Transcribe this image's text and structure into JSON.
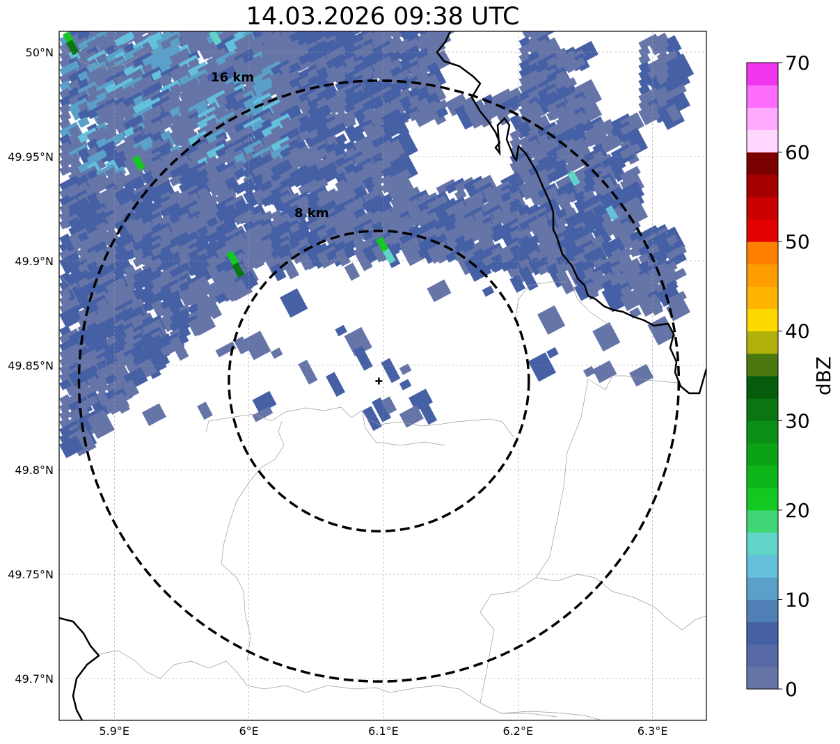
{
  "title": "14.03.2026 09:38 UTC",
  "map": {
    "lon_range": [
      5.859,
      6.34
    ],
    "lat_range": [
      49.68,
      50.01
    ],
    "lon_ticks": [
      {
        "value": 5.9,
        "label": "5.9°E"
      },
      {
        "value": 6.0,
        "label": "6°E"
      },
      {
        "value": 6.1,
        "label": "6.1°E"
      },
      {
        "value": 6.2,
        "label": "6.2°E"
      },
      {
        "value": 6.3,
        "label": "6.3°E"
      }
    ],
    "lat_ticks": [
      {
        "value": 50.0,
        "label": "50°N"
      },
      {
        "value": 49.95,
        "label": "49.95°N"
      },
      {
        "value": 49.9,
        "label": "49.9°N"
      },
      {
        "value": 49.85,
        "label": "49.85°N"
      },
      {
        "value": 49.8,
        "label": "49.8°N"
      },
      {
        "value": 49.75,
        "label": "49.75°N"
      },
      {
        "value": 49.7,
        "label": "49.7°N"
      }
    ],
    "grid": true,
    "radar_site": {
      "lon": 6.0966,
      "lat": 49.8425
    },
    "range_rings": [
      {
        "radius_km": 8,
        "label": "8 km"
      },
      {
        "radius_km": 16,
        "label": "16 km"
      }
    ]
  },
  "colorbar": {
    "label": "dBZ",
    "ticks": [
      {
        "value": 0,
        "label": "0"
      },
      {
        "value": 10,
        "label": "10"
      },
      {
        "value": 20,
        "label": "20"
      },
      {
        "value": 30,
        "label": "30"
      },
      {
        "value": 40,
        "label": "40"
      },
      {
        "value": 50,
        "label": "50"
      },
      {
        "value": 60,
        "label": "60"
      },
      {
        "value": 70,
        "label": "70"
      }
    ],
    "step": 2.5,
    "colors": [
      "#6675a8",
      "#5669a5",
      "#4660a5",
      "#4f7fb5",
      "#5aa0c9",
      "#64c0dc",
      "#61d4c8",
      "#3fd776",
      "#12c821",
      "#0fb61a",
      "#0ca216",
      "#0a8e14",
      "#097612",
      "#055c0c",
      "#4a770e",
      "#afb00a",
      "#fed900",
      "#ffb500",
      "#fe9d00",
      "#ff8000",
      "#e30000",
      "#c90000",
      "#a50000",
      "#7a0000",
      "#ffd7ff",
      "#ffaaff",
      "#ff6dff",
      "#f036ef"
    ]
  },
  "echo_colors": {
    "weak": "#6675a8",
    "moderate": "#4660a5",
    "light_blue": "#5aa0c9",
    "cyan": "#64c0dc",
    "teal": "#61d4c8",
    "green": "#12c821",
    "dark_green": "#097612"
  }
}
